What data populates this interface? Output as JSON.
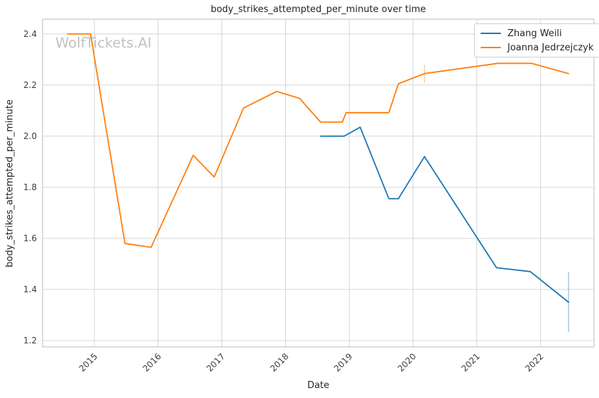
{
  "chart_data": {
    "type": "line",
    "title": "body_strikes_attempted_per_minute over time",
    "xlabel": "Date",
    "ylabel": "body_strikes_attempted_per_minute",
    "watermark": "WolfTickets.AI",
    "grid": true,
    "legend_position": "upper right",
    "xlim": [
      2014.187,
      2022.84
    ],
    "ylim": [
      1.175,
      2.458
    ],
    "xticks": {
      "values": [
        2015,
        2016,
        2017,
        2018,
        2019,
        2020,
        2021,
        2022
      ],
      "labels": [
        "2015",
        "2016",
        "2017",
        "2018",
        "2019",
        "2020",
        "2021",
        "2022"
      ]
    },
    "yticks": {
      "values": [
        1.2,
        1.4,
        1.6,
        1.8,
        2.0,
        2.2,
        2.4
      ],
      "labels": [
        "1.2",
        "1.4",
        "1.6",
        "1.8",
        "2.0",
        "2.2",
        "2.4"
      ]
    },
    "series": [
      {
        "name": "Zhang Weili",
        "color": "#1f77b4",
        "points": [
          [
            2018.55,
            2.0
          ],
          [
            2018.92,
            2.0
          ],
          [
            2019.17,
            2.035
          ],
          [
            2019.62,
            1.755
          ],
          [
            2019.77,
            1.755
          ],
          [
            2020.18,
            1.92
          ],
          [
            2021.31,
            1.485
          ],
          [
            2021.84,
            1.47
          ],
          [
            2022.44,
            1.35
          ]
        ],
        "error_bars": [
          {
            "x": 2022.44,
            "y_low": 1.233,
            "y_high": 1.469
          }
        ]
      },
      {
        "name": "Joanna Jedrzejczyk",
        "color": "#ff7f0e",
        "points": [
          [
            2014.58,
            2.4
          ],
          [
            2014.94,
            2.4
          ],
          [
            2015.48,
            1.58
          ],
          [
            2015.89,
            1.565
          ],
          [
            2016.55,
            1.925
          ],
          [
            2016.88,
            1.84
          ],
          [
            2017.34,
            2.11
          ],
          [
            2017.86,
            2.175
          ],
          [
            2018.22,
            2.148
          ],
          [
            2018.55,
            2.055
          ],
          [
            2018.89,
            2.055
          ],
          [
            2018.95,
            2.092
          ],
          [
            2019.62,
            2.092
          ],
          [
            2019.77,
            2.205
          ],
          [
            2020.18,
            2.245
          ],
          [
            2021.33,
            2.285
          ],
          [
            2021.86,
            2.285
          ],
          [
            2022.44,
            2.245
          ]
        ],
        "error_bars": [
          {
            "x": 2020.18,
            "y_low": 2.208,
            "y_high": 2.278
          }
        ]
      }
    ],
    "colors": {
      "background": "#ffffff",
      "grid": "#d5d5d5",
      "spine": "#c9c9c9",
      "tick_text": "#3d3d3d",
      "text": "#262626",
      "watermark": "#c2c2c2"
    }
  }
}
